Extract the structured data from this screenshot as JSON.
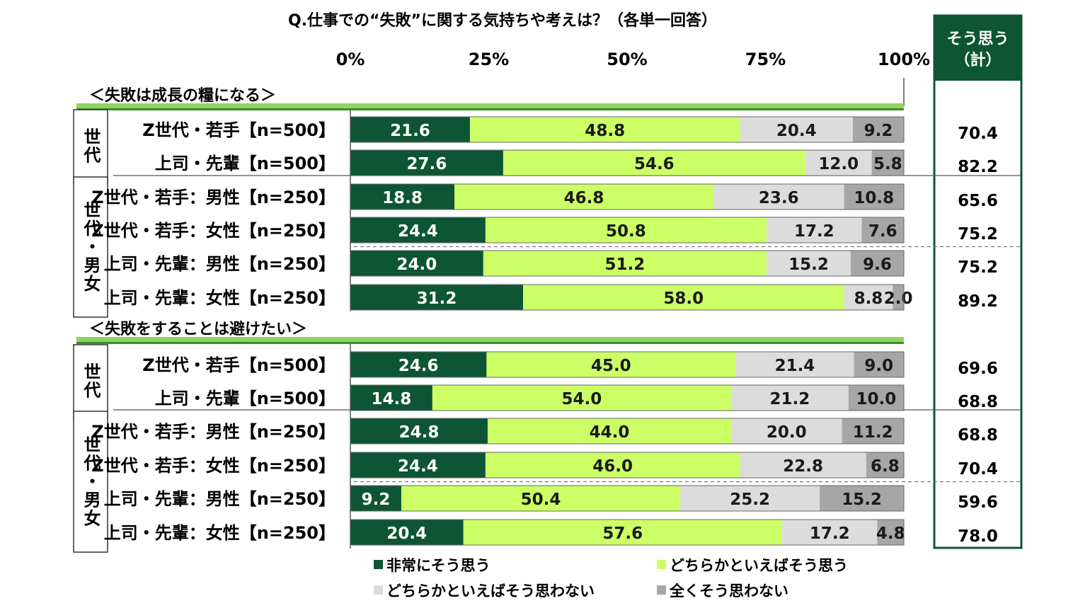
{
  "colors": {
    "very_agree": "#0d5535",
    "somewhat_agree": "#ccff66",
    "somewhat_disagree": "#dcdcdc",
    "not_agree": "#a6a6a6",
    "section_band": "#8fd45e",
    "header_bg": "#0d5535"
  },
  "chart_data": {
    "type": "bar",
    "orientation": "horizontal",
    "stacked": true,
    "title": "Q.仕事での“失敗”に関する気持ちや考えは？（各単一回答）",
    "xlim": [
      0,
      100
    ],
    "x_ticks": [
      "0%",
      "25%",
      "50%",
      "75%",
      "100%"
    ],
    "total_header": [
      "そう思う",
      "（計）"
    ],
    "legend_position": "bottom",
    "series": [
      {
        "name": "非常にそう思う"
      },
      {
        "name": "どちらかといえばそう思う"
      },
      {
        "name": "どちらかといえばそう思わない"
      },
      {
        "name": "全くそう思わない"
      }
    ],
    "sections": [
      {
        "title": "＜失敗は成長の糧になる＞",
        "groups": [
          {
            "label": "世代",
            "rows": [
              {
                "label": "Z世代・若手【n=500】",
                "values": [
                  21.6,
                  48.8,
                  20.4,
                  9.2
                ],
                "total": "70.4"
              },
              {
                "label": "上司・先輩【n=500】",
                "values": [
                  27.6,
                  54.6,
                  12.0,
                  5.8
                ],
                "total": "82.2"
              }
            ]
          },
          {
            "label": "世代・男女",
            "rows": [
              {
                "label": "Z世代・若手：男性【n=250】",
                "values": [
                  18.8,
                  46.8,
                  23.6,
                  10.8
                ],
                "total": "65.6"
              },
              {
                "label": "Z世代・若手：女性【n=250】",
                "values": [
                  24.4,
                  50.8,
                  17.2,
                  7.6
                ],
                "total": "75.2"
              },
              {
                "label": "上司・先輩：男性【n=250】",
                "values": [
                  24.0,
                  51.2,
                  15.2,
                  9.6
                ],
                "total": "75.2"
              },
              {
                "label": "上司・先輩：女性【n=250】",
                "values": [
                  31.2,
                  58.0,
                  8.8,
                  2.0
                ],
                "total": "89.2"
              }
            ]
          }
        ]
      },
      {
        "title": "＜失敗をすることは避けたい＞",
        "groups": [
          {
            "label": "世代",
            "rows": [
              {
                "label": "Z世代・若手【n=500】",
                "values": [
                  24.6,
                  45.0,
                  21.4,
                  9.0
                ],
                "total": "69.6"
              },
              {
                "label": "上司・先輩【n=500】",
                "values": [
                  14.8,
                  54.0,
                  21.2,
                  10.0
                ],
                "total": "68.8"
              }
            ]
          },
          {
            "label": "世代・男女",
            "rows": [
              {
                "label": "Z世代・若手：男性【n=250】",
                "values": [
                  24.8,
                  44.0,
                  20.0,
                  11.2
                ],
                "total": "68.8"
              },
              {
                "label": "Z世代・若手：女性【n=250】",
                "values": [
                  24.4,
                  46.0,
                  22.8,
                  6.8
                ],
                "total": "70.4"
              },
              {
                "label": "上司・先輩：男性【n=250】",
                "values": [
                  9.2,
                  50.4,
                  25.2,
                  15.2
                ],
                "total": "59.6"
              },
              {
                "label": "上司・先輩：女性【n=250】",
                "values": [
                  20.4,
                  57.6,
                  17.2,
                  4.8
                ],
                "total": "78.0"
              }
            ]
          }
        ]
      }
    ]
  }
}
